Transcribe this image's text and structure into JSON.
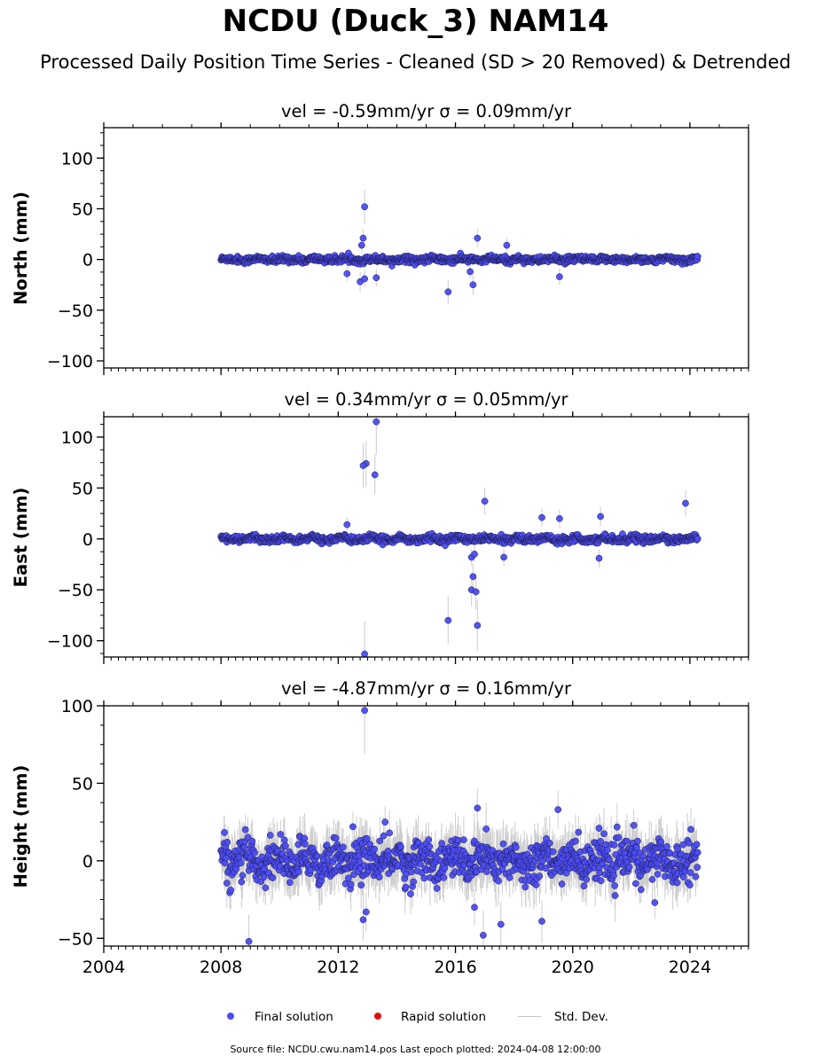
{
  "figure": {
    "title": "NCDU (Duck_3) NAM14",
    "subtitle": "Processed Daily Position Time Series - Cleaned (SD > 20 Removed) & Detrended",
    "source_note": "Source file: NCDU.cwu.nam14.pos  Last epoch plotted: 2024-04-08 12:00:00"
  },
  "legend": {
    "final_label": "Final solution",
    "rapid_label": "Rapid solution",
    "std_label": "Std. Dev."
  },
  "colors": {
    "final": "#4b4bf5",
    "rapid": "#e01010",
    "std": "#c8c8c8",
    "marker_edge": "#1a1a40"
  },
  "chart_data": [
    {
      "type": "scatter",
      "title": "vel = -0.59mm/yr   σ = 0.09mm/yr",
      "ylabel": "North (mm)",
      "xlim": [
        2004,
        2026
      ],
      "ylim": [
        -107,
        130
      ],
      "xticks": [
        2004,
        2008,
        2012,
        2016,
        2020,
        2024
      ],
      "yticks": [
        -100,
        -50,
        0,
        50,
        100
      ],
      "show_xticklabels": false,
      "time_range": [
        2008.0,
        2024.27
      ],
      "noise_sd": 1.6,
      "seasonal_amp": 0.8,
      "outliers": [
        [
          2012.9,
          52
        ],
        [
          2012.85,
          21
        ],
        [
          2012.8,
          14
        ],
        [
          2012.75,
          -22
        ],
        [
          2012.9,
          -19
        ],
        [
          2012.3,
          -14
        ],
        [
          2013.3,
          -18
        ],
        [
          2015.75,
          -32
        ],
        [
          2016.6,
          -25
        ],
        [
          2016.5,
          -12
        ],
        [
          2016.75,
          21
        ],
        [
          2017.75,
          14
        ],
        [
          2019.55,
          -17
        ]
      ]
    },
    {
      "type": "scatter",
      "title": "vel = 0.34mm/yr   σ = 0.05mm/yr",
      "ylabel": "East (mm)",
      "xlim": [
        2004,
        2026
      ],
      "ylim": [
        -116,
        120
      ],
      "xticks": [
        2004,
        2008,
        2012,
        2016,
        2020,
        2024
      ],
      "yticks": [
        -100,
        -50,
        0,
        50,
        100
      ],
      "show_xticklabels": false,
      "time_range": [
        2008.0,
        2024.27
      ],
      "noise_sd": 1.6,
      "seasonal_amp": 1.2,
      "outliers": [
        [
          2013.3,
          115
        ],
        [
          2012.95,
          74
        ],
        [
          2012.85,
          72
        ],
        [
          2013.25,
          63
        ],
        [
          2012.9,
          -113
        ],
        [
          2015.75,
          -80
        ],
        [
          2016.55,
          -50
        ],
        [
          2016.6,
          -37
        ],
        [
          2016.7,
          -52
        ],
        [
          2016.75,
          -85
        ],
        [
          2016.55,
          -18
        ],
        [
          2016.65,
          -15
        ],
        [
          2017.0,
          37
        ],
        [
          2017.65,
          -18
        ],
        [
          2018.95,
          21
        ],
        [
          2019.55,
          20
        ],
        [
          2020.95,
          22
        ],
        [
          2020.9,
          -19
        ],
        [
          2023.85,
          35
        ],
        [
          2012.3,
          14
        ]
      ]
    },
    {
      "type": "scatter",
      "title": "vel = -4.87mm/yr   σ = 0.16mm/yr",
      "ylabel": "Height (mm)",
      "xlim": [
        2004,
        2026
      ],
      "ylim": [
        -55,
        100
      ],
      "xticks": [
        2004,
        2008,
        2012,
        2016,
        2020,
        2024
      ],
      "yticks": [
        -50,
        0,
        50,
        100
      ],
      "show_xticklabels": true,
      "time_range": [
        2008.0,
        2024.27
      ],
      "noise_sd": 6.5,
      "seasonal_amp": 4.0,
      "outliers": [
        [
          2012.9,
          97
        ],
        [
          2008.95,
          -52
        ],
        [
          2012.95,
          -33
        ],
        [
          2012.85,
          -38
        ],
        [
          2013.6,
          25
        ],
        [
          2016.75,
          34
        ],
        [
          2016.65,
          -30
        ],
        [
          2016.95,
          -48
        ],
        [
          2017.55,
          -41
        ],
        [
          2018.95,
          -39
        ],
        [
          2019.5,
          33
        ],
        [
          2020.9,
          21
        ],
        [
          2022.8,
          -27
        ],
        [
          2012.5,
          22
        ]
      ]
    }
  ]
}
